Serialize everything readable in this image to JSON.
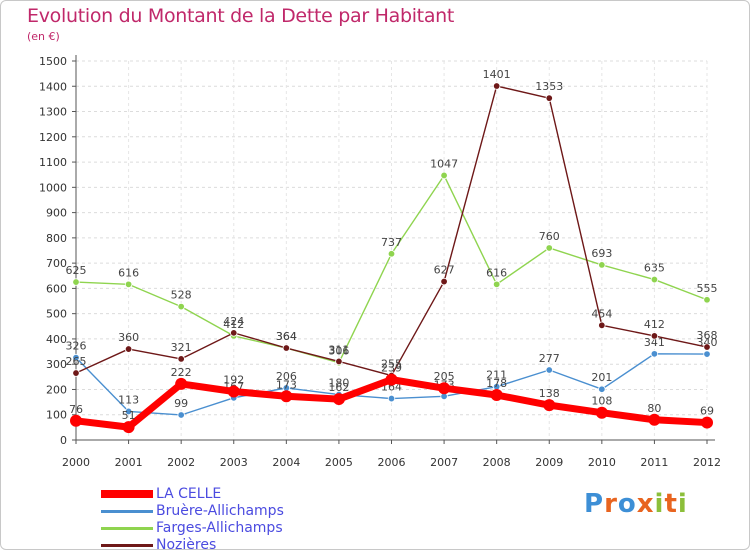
{
  "title": "Evolution du Montant de la Dette par Habitant",
  "subtitle": "(en €)",
  "brand": "Proxiti",
  "brand_colors": [
    "#3d8fd6",
    "#e8641f",
    "#3d8fd6",
    "#e8641f",
    "#8cbf3a",
    "#e8641f",
    "#8cbf3a"
  ],
  "chart_data": {
    "type": "line",
    "title": "Evolution du Montant de la Dette par Habitant",
    "subtitle": "(en €)",
    "x": [
      2000,
      2001,
      2002,
      2003,
      2004,
      2005,
      2006,
      2007,
      2008,
      2009,
      2010,
      2011,
      2012
    ],
    "ylim": [
      0,
      1500
    ],
    "yticks": [
      0,
      100,
      200,
      300,
      400,
      500,
      600,
      700,
      800,
      900,
      1000,
      1100,
      1200,
      1300,
      1400,
      1500
    ],
    "grid": true,
    "legend_position": "bottom-left",
    "series": [
      {
        "name": "LA CELLE",
        "color": "#ff0000",
        "emphasis": true,
        "values": [
          76,
          51,
          222,
          192,
          173,
          162,
          239,
          205,
          178,
          138,
          108,
          80,
          69
        ]
      },
      {
        "name": "Bruère-Allichamps",
        "color": "#4a8fd0",
        "values": [
          326,
          113,
          99,
          167,
          206,
          180,
          164,
          173,
          211,
          277,
          201,
          341,
          340
        ]
      },
      {
        "name": "Farges-Allichamps",
        "color": "#8fd44f",
        "values": [
          625,
          616,
          528,
          412,
          364,
          306,
          737,
          1047,
          616,
          760,
          693,
          635,
          555
        ]
      },
      {
        "name": "Nozières",
        "color": "#6e1818",
        "values": [
          265,
          360,
          321,
          424,
          364,
          311,
          255,
          627,
          1401,
          1353,
          454,
          412,
          368
        ]
      }
    ]
  }
}
